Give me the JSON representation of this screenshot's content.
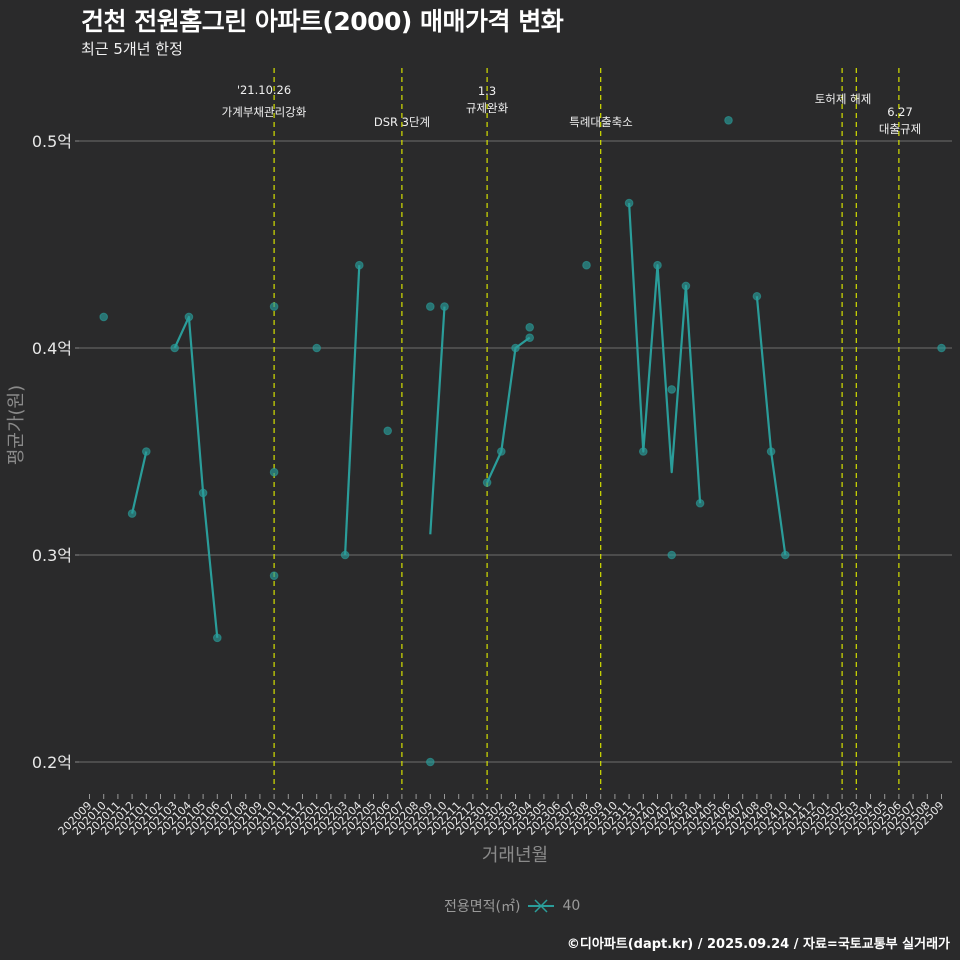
{
  "title": "건천 전원홈그린 아파트(2000) 매매가격 변화",
  "subtitle": "최근 5개년 한정",
  "footer": "©디아파트(dapt.kr) / 2025.09.24 / 자료=국토교통부 실거래가",
  "legend": {
    "title": "전용면적(㎡)",
    "items": [
      {
        "label": "40",
        "color": "#2a9d9a"
      }
    ]
  },
  "colors": {
    "background": "#2a2a2b",
    "series": "#2a9d9a",
    "event_line": "#d4e000",
    "grid": "#6e6e6e"
  },
  "chart_data": {
    "type": "line",
    "title": "건천 전원홈그린 아파트(2000) 매매가격 변화",
    "subtitle": "최근 5개년 한정",
    "xlabel": "거래년월",
    "ylabel": "평균가(원)",
    "ylim": [
      0.19,
      0.52
    ],
    "yticks": [
      "0.2억",
      "0.3억",
      "0.4억",
      "0.5억"
    ],
    "ytick_values": [
      0.2,
      0.3,
      0.4,
      0.5
    ],
    "grid": true,
    "legend_position": "bottom",
    "x_categories": [
      "202009",
      "202010",
      "202011",
      "202012",
      "202101",
      "202102",
      "202103",
      "202104",
      "202105",
      "202106",
      "202107",
      "202108",
      "202109",
      "202110",
      "202111",
      "202112",
      "202201",
      "202202",
      "202203",
      "202204",
      "202205",
      "202206",
      "202207",
      "202208",
      "202209",
      "202210",
      "202211",
      "202212",
      "202301",
      "202302",
      "202303",
      "202304",
      "202305",
      "202306",
      "202307",
      "202308",
      "202309",
      "202310",
      "202311",
      "202312",
      "202401",
      "202402",
      "202403",
      "202404",
      "202405",
      "202406",
      "202407",
      "202408",
      "202409",
      "202410",
      "202411",
      "202412",
      "202501",
      "202502",
      "202503",
      "202504",
      "202505",
      "202506",
      "202507",
      "202508",
      "202509"
    ],
    "series": [
      {
        "name": "40",
        "line_segments": [
          [
            [
              "202012",
              0.32
            ],
            [
              "202101",
              0.35
            ]
          ],
          [
            [
              "202103",
              0.4
            ],
            [
              "202104",
              0.415
            ],
            [
              "202105",
              0.33
            ],
            [
              "202106",
              0.26
            ]
          ],
          [
            [
              "202203",
              0.3
            ],
            [
              "202204",
              0.44
            ]
          ],
          [
            [
              "202209",
              0.31
            ],
            [
              "202210",
              0.42
            ]
          ],
          [
            [
              "202301",
              0.335
            ],
            [
              "202302",
              0.35
            ],
            [
              "202303",
              0.4
            ],
            [
              "202304",
              0.405
            ]
          ],
          [
            [
              "202311",
              0.47
            ],
            [
              "202312",
              0.35
            ],
            [
              "202401",
              0.44
            ],
            [
              "202402",
              0.34
            ],
            [
              "202403",
              0.43
            ],
            [
              "202404",
              0.325
            ]
          ],
          [
            [
              "202408",
              0.425
            ],
            [
              "202409",
              0.35
            ],
            [
              "202410",
              0.3
            ]
          ]
        ],
        "points": [
          [
            "202010",
            0.415
          ],
          [
            "202012",
            0.32
          ],
          [
            "202101",
            0.35
          ],
          [
            "202103",
            0.4
          ],
          [
            "202104",
            0.415
          ],
          [
            "202105",
            0.33
          ],
          [
            "202106",
            0.26
          ],
          [
            "202110",
            0.42
          ],
          [
            "202110",
            0.34
          ],
          [
            "202110",
            0.29
          ],
          [
            "202201",
            0.4
          ],
          [
            "202203",
            0.3
          ],
          [
            "202204",
            0.44
          ],
          [
            "202206",
            0.36
          ],
          [
            "202209",
            0.42
          ],
          [
            "202209",
            0.2
          ],
          [
            "202210",
            0.42
          ],
          [
            "202301",
            0.335
          ],
          [
            "202302",
            0.35
          ],
          [
            "202303",
            0.4
          ],
          [
            "202304",
            0.405
          ],
          [
            "202304",
            0.41
          ],
          [
            "202308",
            0.44
          ],
          [
            "202311",
            0.47
          ],
          [
            "202312",
            0.35
          ],
          [
            "202401",
            0.44
          ],
          [
            "202402",
            0.38
          ],
          [
            "202402",
            0.3
          ],
          [
            "202403",
            0.43
          ],
          [
            "202404",
            0.325
          ],
          [
            "202406",
            0.51
          ],
          [
            "202408",
            0.425
          ],
          [
            "202409",
            0.35
          ],
          [
            "202410",
            0.3
          ],
          [
            "202509",
            0.4
          ]
        ]
      }
    ],
    "annotations": [
      {
        "x": "202110",
        "line1": "'21.10.26",
        "line2": "가계부채관리강화"
      },
      {
        "x": "202207",
        "line1": "",
        "line2": "DSR 3단계"
      },
      {
        "x": "202301",
        "line1": "1.3",
        "line2": "규제완화"
      },
      {
        "x": "202309",
        "line1": "",
        "line2": "특례대출축소"
      },
      {
        "x": "202502",
        "line1": "",
        "line2": ""
      },
      {
        "x": "202503",
        "line1": "토허제 해제",
        "line2": ""
      },
      {
        "x": "202506",
        "line1": "6.27",
        "line2": "대출규제"
      }
    ]
  }
}
